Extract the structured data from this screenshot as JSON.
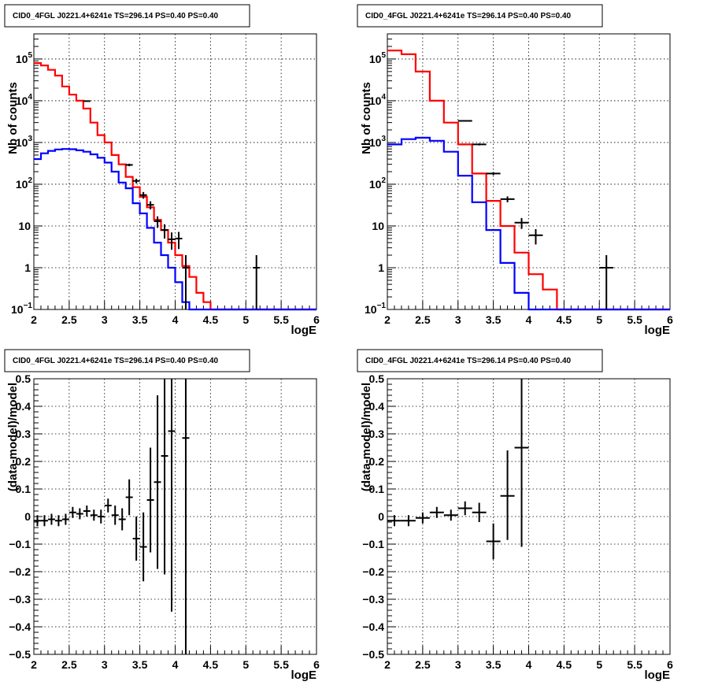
{
  "chart_data": [
    {
      "type": "line",
      "title": "CID0_4FGL J0221.4+6241e TS=296.14 PS=0.40 PS=0.40",
      "xlabel": "logE",
      "ylabel": "Nb of counts",
      "xlim": [
        2,
        6
      ],
      "ylim": [
        0.1,
        400000
      ],
      "yscale": "log",
      "grid": true,
      "x_ticks": [
        "2",
        "2.5",
        "3",
        "3.5",
        "4",
        "4.5",
        "5",
        "5.5",
        "6"
      ],
      "y_ticks": [
        {
          "value": 0.1,
          "label": "10",
          "exp": "−1"
        },
        {
          "value": 1,
          "label": "1",
          "exp": ""
        },
        {
          "value": 10,
          "label": "10",
          "exp": ""
        },
        {
          "value": 100,
          "label": "10",
          "exp": "2"
        },
        {
          "value": 1000,
          "label": "10",
          "exp": "3"
        },
        {
          "value": 10000,
          "label": "10",
          "exp": "4"
        },
        {
          "value": 100000,
          "label": "10",
          "exp": "5"
        }
      ],
      "bin_edges": [
        2.0,
        2.1,
        2.2,
        2.3,
        2.4,
        2.5,
        2.6,
        2.7,
        2.8,
        2.9,
        3.0,
        3.1,
        3.2,
        3.3,
        3.4,
        3.5,
        3.6,
        3.7,
        3.8,
        3.9,
        4.0,
        4.1,
        4.2,
        4.3,
        4.4,
        4.5,
        4.6,
        4.7,
        4.8,
        4.9,
        5.0,
        5.1,
        5.2,
        5.3,
        5.4,
        5.5,
        5.6,
        5.7,
        5.8,
        5.9,
        6.0
      ],
      "series": [
        {
          "color": "#ff0000",
          "kind": "step",
          "values": [
            80000,
            70000,
            55000,
            40000,
            22000,
            14000,
            10000,
            6500,
            3000,
            1500,
            1000,
            500,
            300,
            150,
            85,
            50,
            28,
            14,
            8,
            4,
            2,
            1.1,
            0.6,
            0.25,
            0.15,
            0,
            0,
            0,
            0,
            0,
            0,
            0,
            0,
            0,
            0,
            0,
            0,
            0,
            0,
            0
          ]
        },
        {
          "color": "#0000ff",
          "kind": "step",
          "values": [
            400,
            550,
            630,
            680,
            700,
            690,
            650,
            600,
            520,
            430,
            330,
            200,
            110,
            80,
            35,
            20,
            9,
            4,
            2,
            1,
            0.45,
            0.15,
            0,
            0,
            0,
            0,
            0,
            0,
            0,
            0,
            0,
            0,
            0,
            0,
            0,
            0,
            0,
            0,
            0,
            0
          ]
        },
        {
          "color": "#000000",
          "kind": "points",
          "points": [
            {
              "x": 2.75,
              "y": 9800,
              "xerr": 0.05,
              "ylo": 9600,
              "yhi": 10000
            },
            {
              "x": 3.35,
              "y": 290,
              "xerr": 0.05,
              "ylo": 270,
              "yhi": 310
            },
            {
              "x": 3.45,
              "y": 120,
              "xerr": 0.05,
              "ylo": 105,
              "yhi": 135
            },
            {
              "x": 3.55,
              "y": 55,
              "xerr": 0.05,
              "ylo": 45,
              "yhi": 65
            },
            {
              "x": 3.65,
              "y": 32,
              "xerr": 0.05,
              "ylo": 25,
              "yhi": 39
            },
            {
              "x": 3.75,
              "y": 13,
              "xerr": 0.05,
              "ylo": 9,
              "yhi": 17
            },
            {
              "x": 3.85,
              "y": 8,
              "xerr": 0.05,
              "ylo": 5,
              "yhi": 11
            },
            {
              "x": 3.95,
              "y": 4.8,
              "xerr": 0.05,
              "ylo": 2.7,
              "yhi": 7
            },
            {
              "x": 4.05,
              "y": 5,
              "xerr": 0.05,
              "ylo": 2.8,
              "yhi": 7.2
            },
            {
              "x": 4.15,
              "y": 1,
              "xerr": 0.05,
              "ylo": 0.1,
              "yhi": 2
            },
            {
              "x": 5.15,
              "y": 1,
              "xerr": 0.05,
              "ylo": 0.1,
              "yhi": 2
            }
          ]
        }
      ]
    },
    {
      "type": "line",
      "title": "CID0_4FGL J0221.4+6241e TS=296.14 PS=0.40 PS=0.40",
      "xlabel": "logE",
      "ylabel": "Nb of counts",
      "xlim": [
        2,
        6
      ],
      "ylim": [
        0.1,
        400000
      ],
      "yscale": "log",
      "grid": true,
      "x_ticks": [
        "2",
        "2.5",
        "3",
        "3.5",
        "4",
        "4.5",
        "5",
        "5.5",
        "6"
      ],
      "y_ticks": [
        {
          "value": 0.1,
          "label": "10",
          "exp": "−1"
        },
        {
          "value": 1,
          "label": "1",
          "exp": ""
        },
        {
          "value": 10,
          "label": "10",
          "exp": ""
        },
        {
          "value": 100,
          "label": "10",
          "exp": "2"
        },
        {
          "value": 1000,
          "label": "10",
          "exp": "3"
        },
        {
          "value": 10000,
          "label": "10",
          "exp": "4"
        },
        {
          "value": 100000,
          "label": "10",
          "exp": "5"
        }
      ],
      "bin_edges": [
        2.0,
        2.2,
        2.4,
        2.6,
        2.8,
        3.0,
        3.2,
        3.4,
        3.6,
        3.8,
        4.0,
        4.2,
        4.4,
        4.6,
        4.8,
        5.0,
        5.2,
        5.4,
        5.6,
        5.8,
        6.0
      ],
      "series": [
        {
          "color": "#ff0000",
          "kind": "step",
          "values": [
            160000,
            130000,
            50000,
            10000,
            3000,
            900,
            180,
            40,
            10,
            2.3,
            0.7,
            0.3,
            0,
            0,
            0,
            0,
            0,
            0,
            0,
            0
          ]
        },
        {
          "color": "#0000ff",
          "kind": "step",
          "values": [
            900,
            1200,
            1300,
            1100,
            600,
            160,
            37,
            8,
            1.3,
            0.25,
            0,
            0,
            0,
            0,
            0,
            0,
            0,
            0,
            0,
            0
          ]
        },
        {
          "color": "#000000",
          "kind": "points",
          "points": [
            {
              "x": 3.1,
              "y": 3300,
              "xerr": 0.1,
              "ylo": 3200,
              "yhi": 3400
            },
            {
              "x": 3.3,
              "y": 900,
              "xerr": 0.1,
              "ylo": 850,
              "yhi": 950
            },
            {
              "x": 3.5,
              "y": 180,
              "xerr": 0.1,
              "ylo": 165,
              "yhi": 195
            },
            {
              "x": 3.7,
              "y": 44,
              "xerr": 0.1,
              "ylo": 37,
              "yhi": 51
            },
            {
              "x": 3.9,
              "y": 12,
              "xerr": 0.1,
              "ylo": 8.5,
              "yhi": 15.5
            },
            {
              "x": 4.1,
              "y": 6,
              "xerr": 0.1,
              "ylo": 3.6,
              "yhi": 8.4
            },
            {
              "x": 5.1,
              "y": 1,
              "xerr": 0.1,
              "ylo": 0.1,
              "yhi": 2
            }
          ]
        }
      ]
    },
    {
      "type": "scatter",
      "title": "CID0_4FGL J0221.4+6241e TS=296.14 PS=0.40 PS=0.40",
      "xlabel": "logE",
      "ylabel": "(data-model)/model",
      "xlim": [
        2,
        6
      ],
      "ylim": [
        -0.5,
        0.5
      ],
      "yscale": "linear",
      "grid": true,
      "x_ticks": [
        "2",
        "2.5",
        "3",
        "3.5",
        "4",
        "4.5",
        "5",
        "5.5",
        "6"
      ],
      "y_ticks": [
        {
          "value": -0.5,
          "label": "−0.5"
        },
        {
          "value": -0.4,
          "label": "−0.4"
        },
        {
          "value": -0.3,
          "label": "−0.3"
        },
        {
          "value": -0.2,
          "label": "−0.2"
        },
        {
          "value": -0.1,
          "label": "−0.1"
        },
        {
          "value": 0,
          "label": "0"
        },
        {
          "value": 0.1,
          "label": "0.1"
        },
        {
          "value": 0.2,
          "label": "0.2"
        },
        {
          "value": 0.3,
          "label": "0.3"
        },
        {
          "value": 0.4,
          "label": "0.4"
        },
        {
          "value": 0.5,
          "label": "0.5"
        }
      ],
      "series": [
        {
          "color": "#000000",
          "kind": "points",
          "points": [
            {
              "x": 2.05,
              "y": -0.015,
              "xerr": 0.05,
              "ylo": -0.035,
              "yhi": 0.005
            },
            {
              "x": 2.15,
              "y": -0.015,
              "xerr": 0.05,
              "ylo": -0.035,
              "yhi": 0.005
            },
            {
              "x": 2.25,
              "y": -0.01,
              "xerr": 0.05,
              "ylo": -0.03,
              "yhi": 0.01
            },
            {
              "x": 2.35,
              "y": -0.015,
              "xerr": 0.05,
              "ylo": -0.035,
              "yhi": 0.005
            },
            {
              "x": 2.45,
              "y": -0.01,
              "xerr": 0.05,
              "ylo": -0.03,
              "yhi": 0.01
            },
            {
              "x": 2.55,
              "y": 0.015,
              "xerr": 0.05,
              "ylo": -0.005,
              "yhi": 0.035
            },
            {
              "x": 2.65,
              "y": 0.01,
              "xerr": 0.05,
              "ylo": -0.01,
              "yhi": 0.03
            },
            {
              "x": 2.75,
              "y": 0.02,
              "xerr": 0.05,
              "ylo": 0.0,
              "yhi": 0.04
            },
            {
              "x": 2.85,
              "y": 0.005,
              "xerr": 0.05,
              "ylo": -0.015,
              "yhi": 0.025
            },
            {
              "x": 2.95,
              "y": 0.0,
              "xerr": 0.05,
              "ylo": -0.025,
              "yhi": 0.025
            },
            {
              "x": 3.05,
              "y": 0.04,
              "xerr": 0.05,
              "ylo": 0.015,
              "yhi": 0.065
            },
            {
              "x": 3.15,
              "y": 0.005,
              "xerr": 0.05,
              "ylo": -0.03,
              "yhi": 0.04
            },
            {
              "x": 3.25,
              "y": -0.01,
              "xerr": 0.05,
              "ylo": -0.05,
              "yhi": 0.03
            },
            {
              "x": 3.35,
              "y": 0.07,
              "xerr": 0.05,
              "ylo": 0.005,
              "yhi": 0.135
            },
            {
              "x": 3.45,
              "y": -0.08,
              "xerr": 0.05,
              "ylo": -0.16,
              "yhi": 0.0
            },
            {
              "x": 3.55,
              "y": -0.11,
              "xerr": 0.05,
              "ylo": -0.235,
              "yhi": 0.015
            },
            {
              "x": 3.65,
              "y": 0.06,
              "xerr": 0.05,
              "ylo": -0.13,
              "yhi": 0.25
            },
            {
              "x": 3.75,
              "y": 0.125,
              "xerr": 0.05,
              "ylo": -0.19,
              "yhi": 0.44
            },
            {
              "x": 3.85,
              "y": 0.22,
              "xerr": 0.05,
              "ylo": -0.21,
              "yhi": 0.5
            },
            {
              "x": 3.95,
              "y": 0.31,
              "xerr": 0.05,
              "ylo": -0.345,
              "yhi": 0.5
            },
            {
              "x": 4.15,
              "y": 0.285,
              "xerr": 0.05,
              "ylo": -0.5,
              "yhi": 0.5
            }
          ]
        }
      ]
    },
    {
      "type": "scatter",
      "title": "CID0_4FGL J0221.4+6241e TS=296.14 PS=0.40 PS=0.40",
      "xlabel": "logE",
      "ylabel": "(data-model)/model",
      "xlim": [
        2,
        6
      ],
      "ylim": [
        -0.5,
        0.5
      ],
      "yscale": "linear",
      "grid": true,
      "x_ticks": [
        "2",
        "2.5",
        "3",
        "3.5",
        "4",
        "4.5",
        "5",
        "5.5",
        "6"
      ],
      "y_ticks": [
        {
          "value": -0.5,
          "label": "−0.5"
        },
        {
          "value": -0.4,
          "label": "−0.4"
        },
        {
          "value": -0.3,
          "label": "−0.3"
        },
        {
          "value": -0.2,
          "label": "−0.2"
        },
        {
          "value": -0.1,
          "label": "−0.1"
        },
        {
          "value": 0,
          "label": "0"
        },
        {
          "value": 0.1,
          "label": "0.1"
        },
        {
          "value": 0.2,
          "label": "0.2"
        },
        {
          "value": 0.3,
          "label": "0.3"
        },
        {
          "value": 0.4,
          "label": "0.4"
        },
        {
          "value": 0.5,
          "label": "0.5"
        }
      ],
      "series": [
        {
          "color": "#000000",
          "kind": "points",
          "points": [
            {
              "x": 2.1,
              "y": -0.015,
              "xerr": 0.1,
              "ylo": -0.035,
              "yhi": 0.005
            },
            {
              "x": 2.3,
              "y": -0.015,
              "xerr": 0.1,
              "ylo": -0.035,
              "yhi": 0.005
            },
            {
              "x": 2.5,
              "y": -0.005,
              "xerr": 0.1,
              "ylo": -0.025,
              "yhi": 0.015
            },
            {
              "x": 2.7,
              "y": 0.015,
              "xerr": 0.1,
              "ylo": -0.005,
              "yhi": 0.035
            },
            {
              "x": 2.9,
              "y": 0.005,
              "xerr": 0.1,
              "ylo": -0.015,
              "yhi": 0.025
            },
            {
              "x": 3.1,
              "y": 0.03,
              "xerr": 0.1,
              "ylo": 0.005,
              "yhi": 0.055
            },
            {
              "x": 3.3,
              "y": 0.015,
              "xerr": 0.1,
              "ylo": -0.02,
              "yhi": 0.05
            },
            {
              "x": 3.5,
              "y": -0.09,
              "xerr": 0.1,
              "ylo": -0.155,
              "yhi": -0.025
            },
            {
              "x": 3.7,
              "y": 0.075,
              "xerr": 0.1,
              "ylo": -0.085,
              "yhi": 0.24
            },
            {
              "x": 3.9,
              "y": 0.25,
              "xerr": 0.1,
              "ylo": -0.11,
              "yhi": 0.5
            }
          ]
        }
      ]
    }
  ]
}
